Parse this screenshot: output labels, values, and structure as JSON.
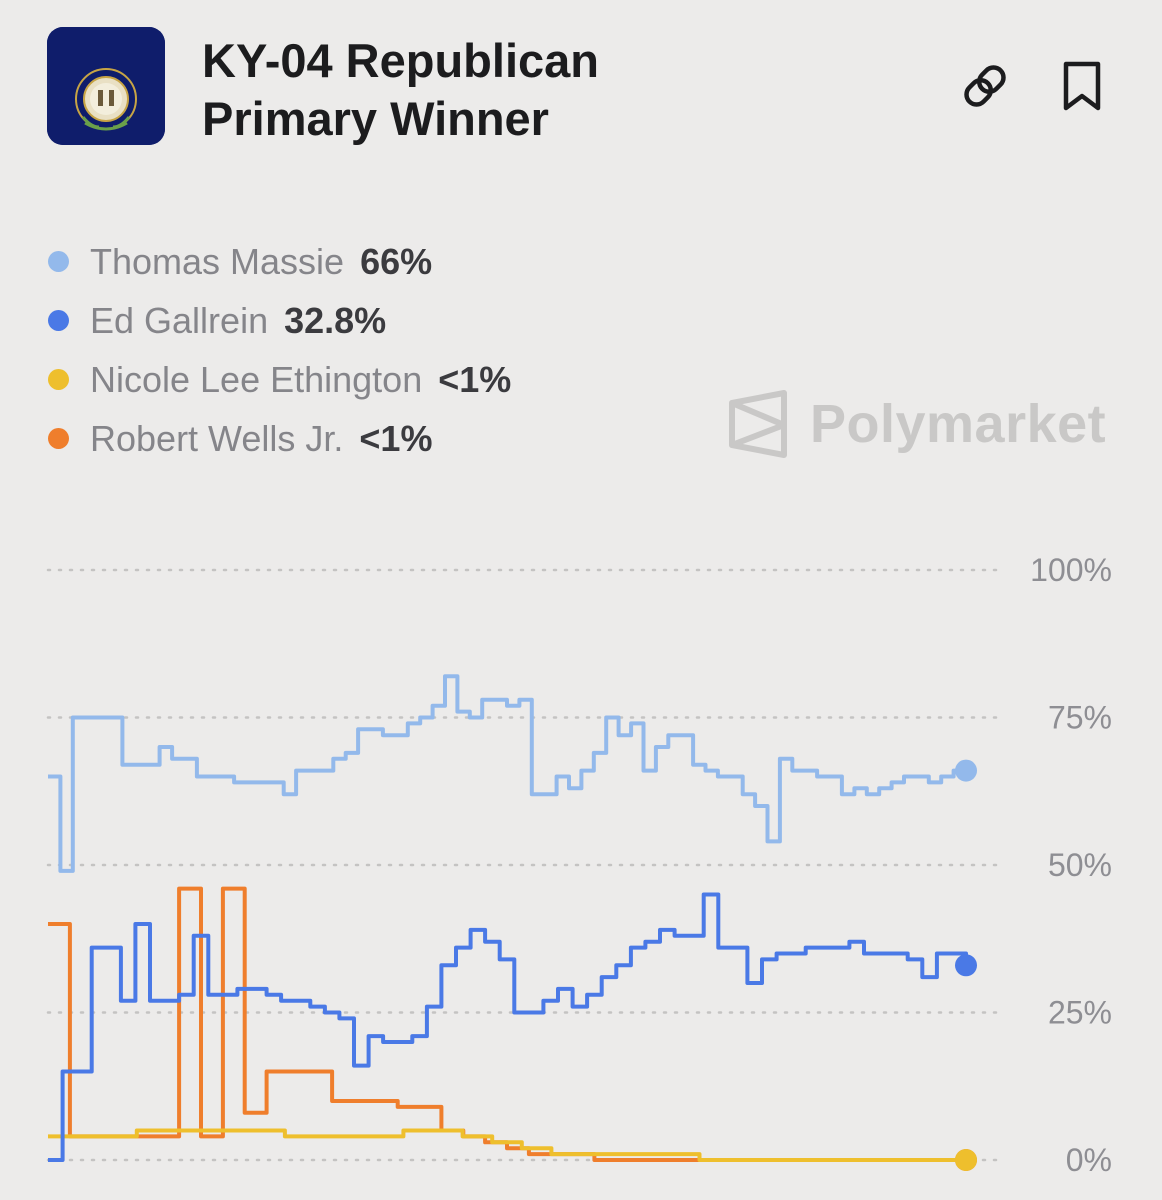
{
  "header": {
    "title_line1": "KY-04 Republican",
    "title_line2": "Primary Winner"
  },
  "icons": {
    "seal": "kentucky-seal-icon",
    "link": "link-icon",
    "bookmark": "bookmark-icon",
    "watermark_logo": "polymarket-logo-icon"
  },
  "watermark": {
    "text": "Polymarket"
  },
  "chart_data": {
    "type": "line",
    "y_ticks": [
      "100%",
      "75%",
      "50%",
      "25%",
      "0%"
    ],
    "ylim": [
      0,
      100
    ],
    "grid": true,
    "x_labels_visible": false,
    "legend_position": "top-left",
    "series": [
      {
        "name": "Thomas Massie",
        "value_label": "66%",
        "color": "#93b9eb",
        "values": [
          65,
          49,
          75,
          75,
          75,
          75,
          67,
          67,
          67,
          70,
          68,
          68,
          65,
          65,
          65,
          64,
          64,
          64,
          64,
          62,
          66,
          66,
          66,
          68,
          69,
          73,
          73,
          72,
          72,
          74,
          75,
          77,
          82,
          76,
          75,
          78,
          78,
          77,
          78,
          62,
          62,
          65,
          63,
          66,
          69,
          75,
          72,
          74,
          66,
          70,
          72,
          72,
          67,
          66,
          65,
          65,
          62,
          60,
          54,
          68,
          66,
          66,
          65,
          65,
          62,
          63,
          62,
          63,
          64,
          65,
          65,
          64,
          65,
          66,
          66
        ]
      },
      {
        "name": "Ed Gallrein",
        "value_label": "32.8%",
        "color": "#4a79e6",
        "values": [
          0,
          15,
          15,
          36,
          36,
          27,
          40,
          27,
          27,
          28,
          38,
          28,
          28,
          29,
          29,
          28,
          27,
          27,
          26,
          25,
          24,
          16,
          21,
          20,
          20,
          21,
          26,
          33,
          36,
          39,
          37,
          34,
          25,
          25,
          27,
          29,
          26,
          28,
          31,
          33,
          36,
          37,
          39,
          38,
          38,
          45,
          36,
          36,
          30,
          34,
          35,
          35,
          36,
          36,
          36,
          37,
          35,
          35,
          35,
          34,
          31,
          35,
          35,
          33
        ]
      },
      {
        "name": "Nicole Lee Ethington",
        "value_label": "<1%",
        "color": "#eebf2d",
        "values": [
          4,
          4,
          4,
          5,
          5,
          5,
          5,
          5,
          4,
          4,
          4,
          4,
          5,
          5,
          4,
          3,
          2,
          1,
          1,
          1,
          1,
          1,
          0,
          0,
          0,
          0,
          0,
          0,
          0,
          0,
          0,
          0
        ]
      },
      {
        "name": "Robert Wells Jr.",
        "value_label": "<1%",
        "color": "#ef7e2c",
        "values": [
          40,
          4,
          4,
          4,
          4,
          4,
          46,
          4,
          46,
          8,
          15,
          15,
          15,
          10,
          10,
          10,
          9,
          9,
          5,
          4,
          3,
          2,
          1,
          1,
          1,
          0,
          0,
          0,
          0,
          0,
          0,
          0,
          0,
          0,
          0,
          0,
          0,
          0,
          0,
          0,
          0,
          0,
          0
        ]
      }
    ]
  }
}
